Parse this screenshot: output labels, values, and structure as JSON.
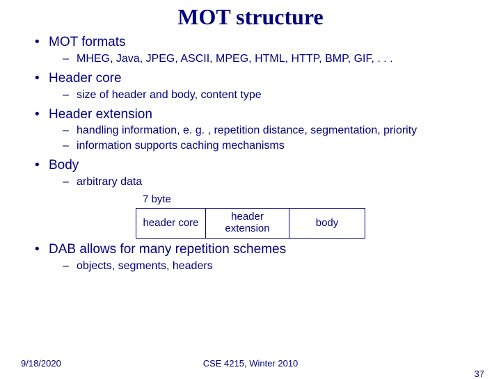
{
  "title": "MOT structure",
  "bullets": {
    "b1": "MOT formats",
    "b1_1": "MHEG, Java, JPEG, ASCII, MPEG, HTML, HTTP, BMP, GIF, . . .",
    "b2": "Header core",
    "b2_1": "size of header and body, content type",
    "b3": "Header extension",
    "b3_1": "handling information, e. g. , repetition distance, segmentation, priority",
    "b3_2": "information supports caching mechanisms",
    "b4": "Body",
    "b4_1": "arbitrary data",
    "b5": "DAB allows for many repetition schemes",
    "b5_1": "objects, segments, headers"
  },
  "diagram": {
    "caption": "7 byte",
    "boxes": {
      "hc": "header core",
      "he": "header extension",
      "bd": "body"
    },
    "border_color": "#000080"
  },
  "footer": {
    "date": "9/18/2020",
    "course": "CSE 4215, Winter 2010",
    "page": "37"
  },
  "colors": {
    "text": "#000080",
    "background": "#ffffff"
  }
}
